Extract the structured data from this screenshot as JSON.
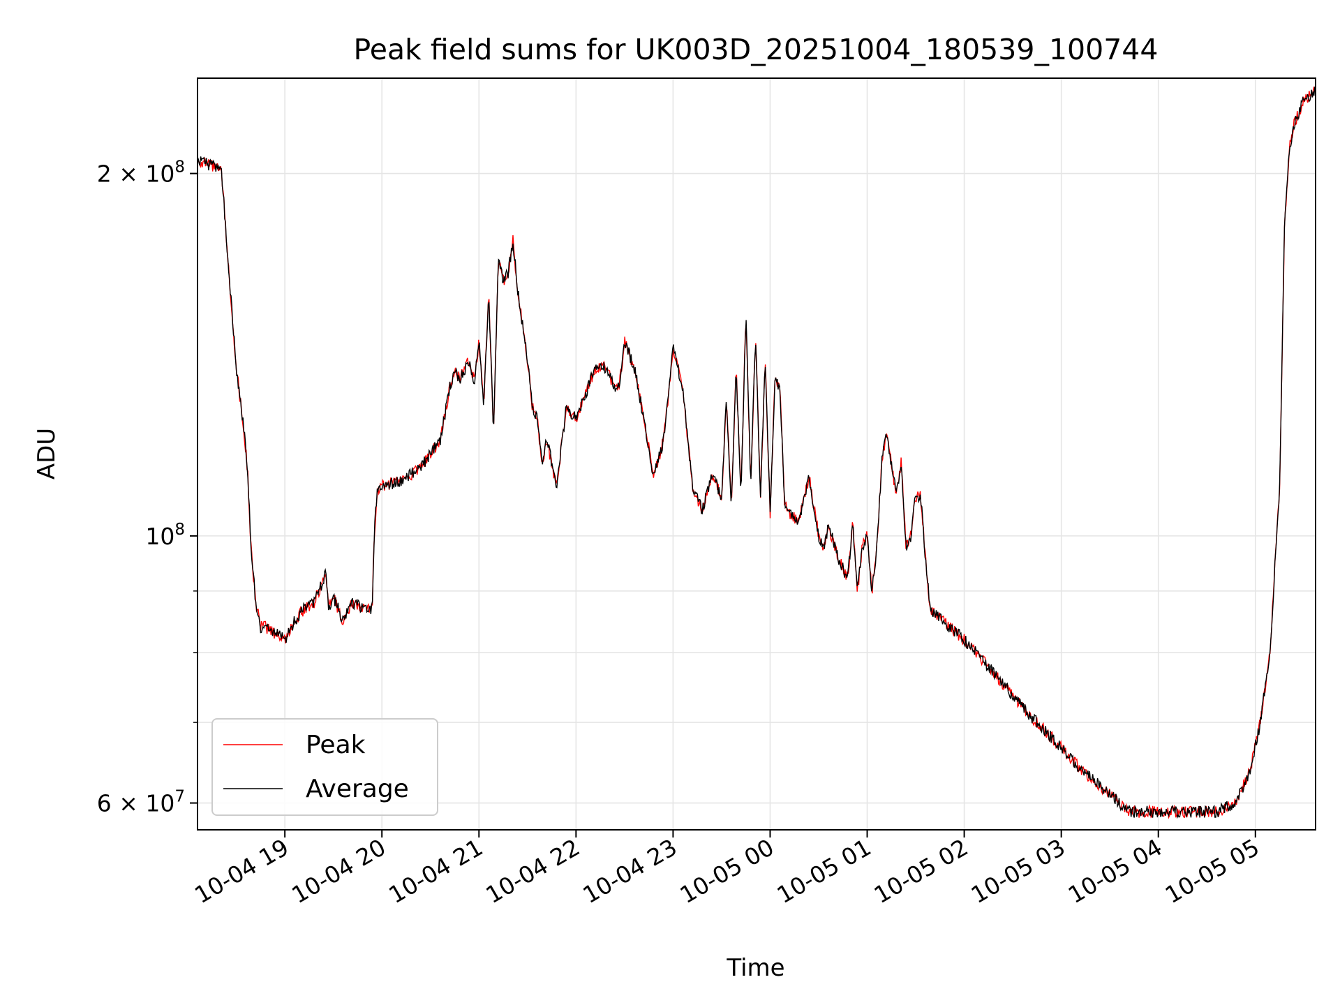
{
  "chart_data": {
    "type": "line",
    "title": "Peak field sums for UK003D_20251004_180539_100744",
    "xlabel": "Time",
    "ylabel": "ADU",
    "yscale": "log",
    "ylim": [
      57000000,
      240000000
    ],
    "xlim_hours": [
      18.1,
      29.62
    ],
    "grid": true,
    "legend_position": "lower-left",
    "x_ticks": [
      {
        "label": "10-04 19",
        "hour": 19
      },
      {
        "label": "10-04 20",
        "hour": 20
      },
      {
        "label": "10-04 21",
        "hour": 21
      },
      {
        "label": "10-04 22",
        "hour": 22
      },
      {
        "label": "10-04 23",
        "hour": 23
      },
      {
        "label": "10-05 00",
        "hour": 24
      },
      {
        "label": "10-05 01",
        "hour": 25
      },
      {
        "label": "10-05 02",
        "hour": 26
      },
      {
        "label": "10-05 03",
        "hour": 27
      },
      {
        "label": "10-05 04",
        "hour": 28
      },
      {
        "label": "10-05 05",
        "hour": 29
      }
    ],
    "y_ticks": [
      {
        "base": "2 × 10",
        "exp": "8",
        "value": 200000000
      },
      {
        "base": "10",
        "exp": "8",
        "value": 100000000
      },
      {
        "base": "6 × 10",
        "exp": "7",
        "value": 60000000
      }
    ],
    "y_minor_ticks": [
      70000000,
      80000000,
      90000000
    ],
    "series": [
      {
        "name": "Peak",
        "color": "#ff0000"
      },
      {
        "name": "Average",
        "color": "#000000"
      }
    ],
    "x": [
      18.1,
      18.3,
      18.35,
      18.4,
      18.5,
      18.58,
      18.62,
      18.65,
      18.7,
      18.75,
      18.8,
      18.9,
      19.0,
      19.1,
      19.2,
      19.3,
      19.42,
      19.45,
      19.5,
      19.6,
      19.7,
      19.8,
      19.9,
      19.92,
      19.95,
      20.0,
      20.2,
      20.4,
      20.6,
      20.7,
      20.75,
      20.8,
      20.9,
      20.95,
      21.0,
      21.05,
      21.1,
      21.15,
      21.2,
      21.25,
      21.3,
      21.35,
      21.4,
      21.5,
      21.55,
      21.6,
      21.65,
      21.7,
      21.8,
      21.9,
      22.0,
      22.2,
      22.3,
      22.4,
      22.45,
      22.5,
      22.6,
      22.7,
      22.8,
      22.9,
      22.95,
      23.0,
      23.1,
      23.2,
      23.3,
      23.4,
      23.5,
      23.55,
      23.6,
      23.65,
      23.7,
      23.75,
      23.8,
      23.85,
      23.9,
      23.95,
      24.0,
      24.05,
      24.1,
      24.15,
      24.2,
      24.3,
      24.4,
      24.5,
      24.55,
      24.6,
      24.7,
      24.8,
      24.85,
      24.9,
      24.95,
      25.0,
      25.05,
      25.1,
      25.15,
      25.2,
      25.3,
      25.35,
      25.4,
      25.45,
      25.5,
      25.55,
      25.6,
      25.65,
      25.7,
      26.0,
      26.3,
      26.6,
      26.9,
      27.2,
      27.5,
      27.7,
      27.9,
      28.0,
      28.3,
      28.6,
      28.8,
      28.95,
      29.05,
      29.15,
      29.25,
      29.3,
      29.35,
      29.4,
      29.5,
      29.62
    ],
    "values": [
      205000000,
      202000000,
      200000000,
      175000000,
      138000000,
      122000000,
      112000000,
      98000000,
      88000000,
      84000000,
      84000000,
      83000000,
      82000000,
      85000000,
      87000000,
      88000000,
      93000000,
      87000000,
      89000000,
      85000000,
      88000000,
      87000000,
      87000000,
      100000000,
      109000000,
      110000000,
      111000000,
      114000000,
      120000000,
      133000000,
      137000000,
      135000000,
      140000000,
      134000000,
      145000000,
      128000000,
      160000000,
      122000000,
      170000000,
      163000000,
      165000000,
      176000000,
      160000000,
      140000000,
      128000000,
      125000000,
      115000000,
      120000000,
      110000000,
      128000000,
      125000000,
      138000000,
      138000000,
      133000000,
      134000000,
      145000000,
      138000000,
      125000000,
      112000000,
      120000000,
      130000000,
      144000000,
      132000000,
      110000000,
      105000000,
      112000000,
      108000000,
      130000000,
      106000000,
      138000000,
      108000000,
      153000000,
      110000000,
      147000000,
      108000000,
      140000000,
      104000000,
      135000000,
      133000000,
      106000000,
      104000000,
      103000000,
      112000000,
      100000000,
      97000000,
      102000000,
      96000000,
      92000000,
      103000000,
      90000000,
      98000000,
      100000000,
      90000000,
      98000000,
      115000000,
      122000000,
      108000000,
      115000000,
      98000000,
      100000000,
      108000000,
      108000000,
      96000000,
      87000000,
      86000000,
      82000000,
      77000000,
      72000000,
      68000000,
      64000000,
      61000000,
      59000000,
      59000000,
      59000000,
      59000000,
      59000000,
      60000000,
      64000000,
      70000000,
      80000000,
      110000000,
      180000000,
      210000000,
      220000000,
      230000000,
      235000000
    ]
  }
}
